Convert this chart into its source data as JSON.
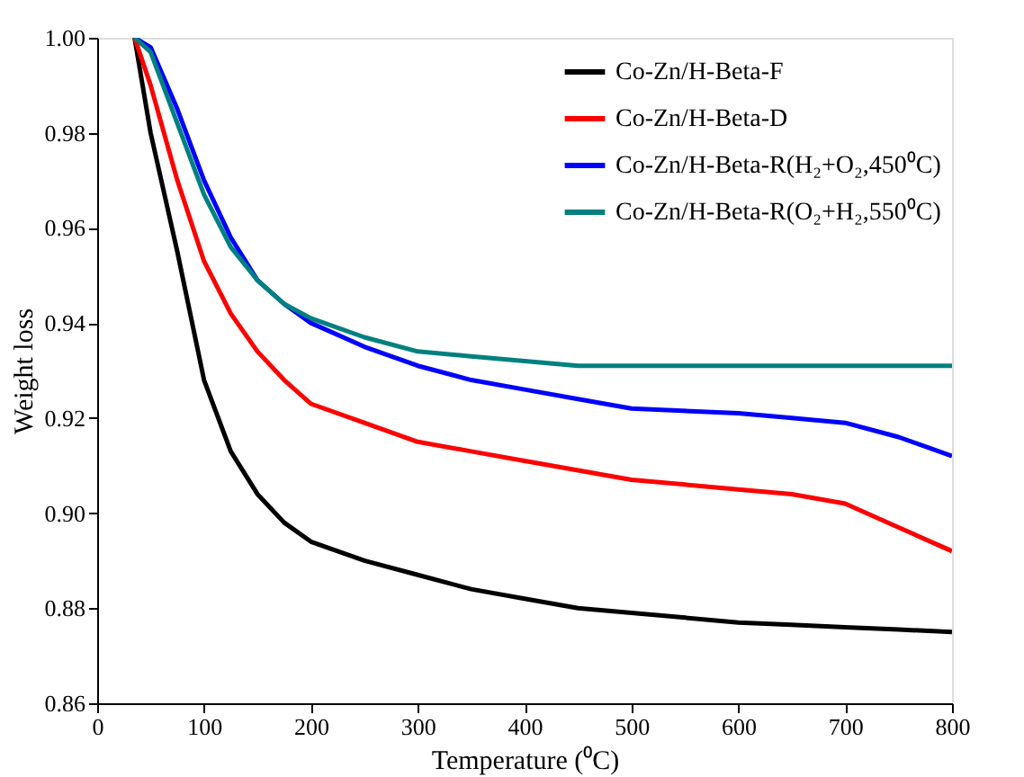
{
  "chart_data": {
    "type": "line",
    "xlabel": "Temperature (⁰C)",
    "ylabel": "Weight loss",
    "xlim": [
      0,
      800
    ],
    "xticks": [
      0,
      100,
      200,
      300,
      400,
      500,
      600,
      700,
      800
    ],
    "ylim": [
      0.86,
      1.0
    ],
    "yticks": [
      0.86,
      0.88,
      {
        "value": 0.9,
        "label": "0.90"
      },
      0.92,
      0.94,
      0.96,
      0.98,
      {
        "value": 1.0,
        "label": "1.00"
      }
    ],
    "x": [
      35,
      50,
      75,
      100,
      125,
      150,
      175,
      200,
      250,
      300,
      350,
      400,
      450,
      500,
      600,
      650,
      700,
      750,
      800
    ],
    "series": [
      {
        "name": "Co-Zn/H-Beta-F",
        "color": "#000000",
        "values": [
          1.0,
          0.98,
          0.955,
          0.928,
          0.913,
          0.904,
          0.898,
          0.894,
          0.89,
          0.887,
          0.884,
          0.882,
          0.88,
          0.879,
          0.877,
          0.8765,
          0.876,
          0.8755,
          0.875
        ]
      },
      {
        "name": "Co-Zn/H-Beta-D",
        "color": "#ff0000",
        "values": [
          1.0,
          0.99,
          0.97,
          0.953,
          0.942,
          0.934,
          0.928,
          0.923,
          0.919,
          0.915,
          0.913,
          0.911,
          0.909,
          0.907,
          0.905,
          0.904,
          0.902,
          0.897,
          0.892
        ]
      },
      {
        "name": "Co-Zn/H-Beta-R(H₂+O₂,450⁰C)",
        "color": "#0000ff",
        "values": [
          1.0,
          0.998,
          0.985,
          0.97,
          0.958,
          0.949,
          0.944,
          0.94,
          0.935,
          0.931,
          0.928,
          0.926,
          0.924,
          0.922,
          0.921,
          0.92,
          0.919,
          0.916,
          0.912
        ]
      },
      {
        "name": "Co-Zn/H-Beta-R(O₂+H₂,550⁰C)",
        "color": "#008080",
        "values": [
          1.0,
          0.997,
          0.982,
          0.967,
          0.956,
          0.949,
          0.944,
          0.941,
          0.937,
          0.934,
          0.933,
          0.932,
          0.931,
          0.931,
          0.931,
          0.931,
          0.931,
          0.931,
          0.931
        ]
      }
    ],
    "legend": "top right",
    "grid": false,
    "marker": "none",
    "line_style": "solid"
  }
}
